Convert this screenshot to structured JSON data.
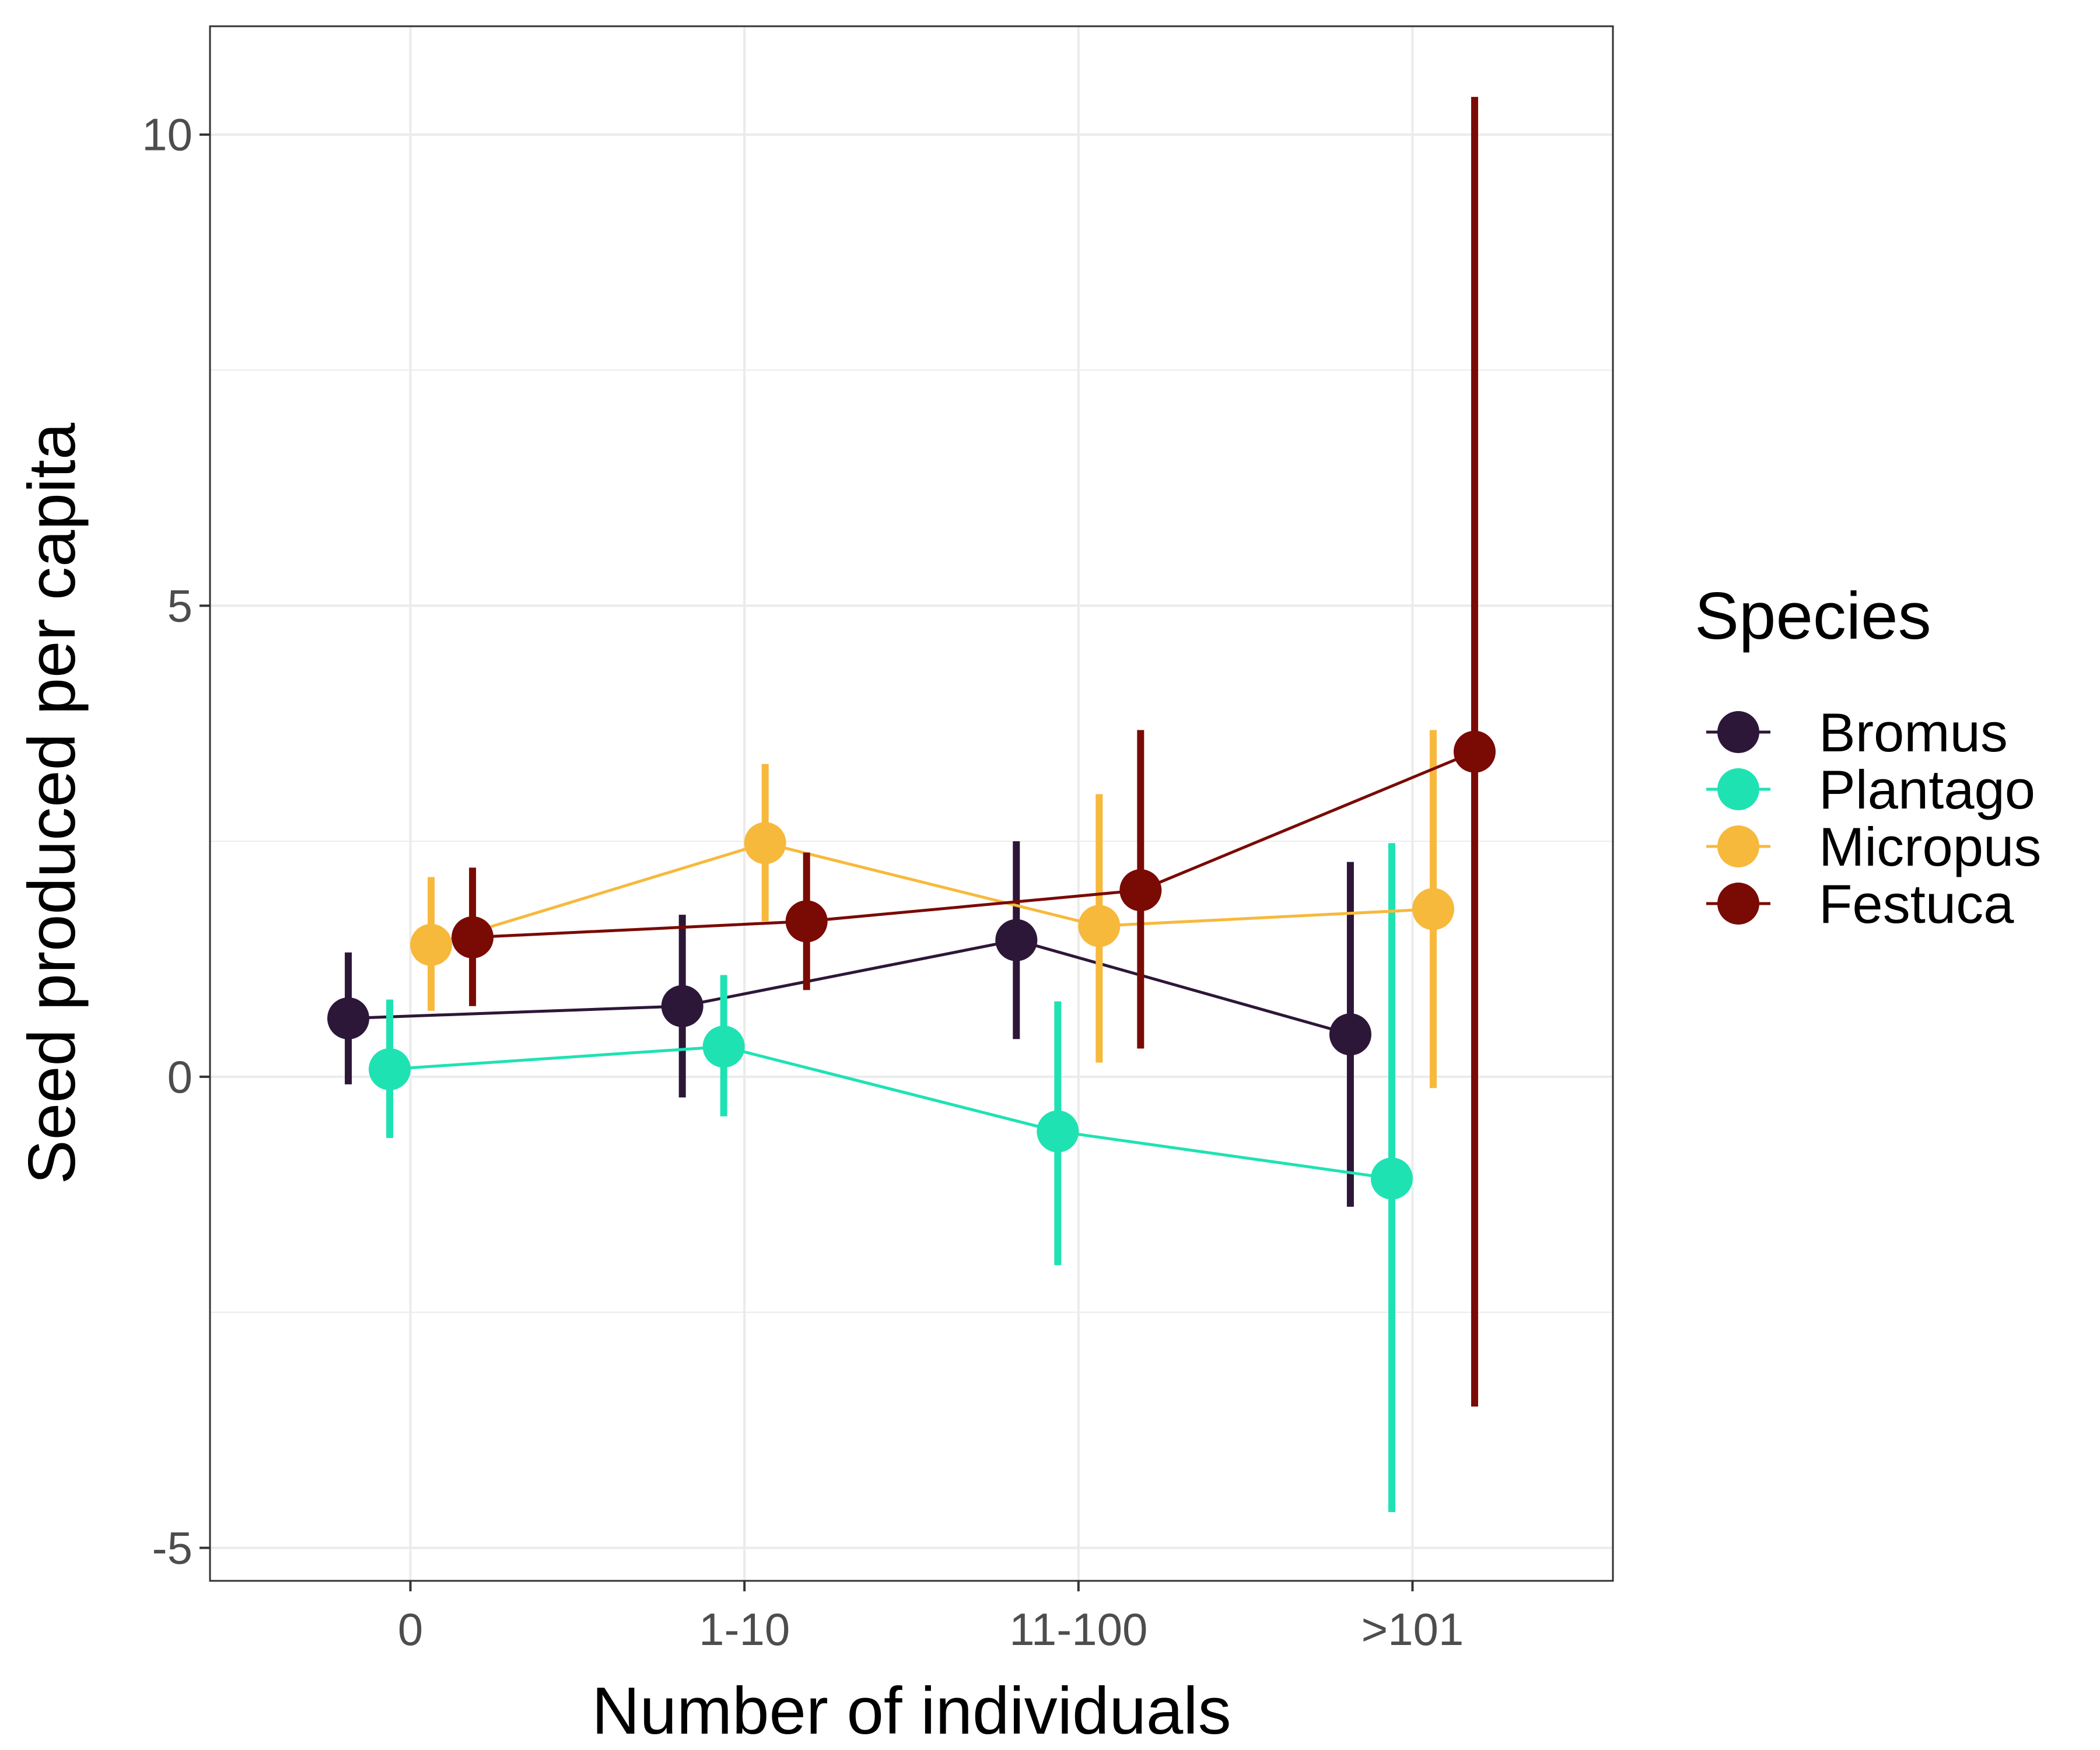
{
  "chart_data": {
    "type": "line",
    "xlabel": "Number of individuals",
    "ylabel": "Seed produced per capita",
    "categories": [
      "0",
      "1-10",
      "11-100",
      ">101"
    ],
    "ylim": [
      -5.35,
      11.15
    ],
    "yticks": [
      -5,
      0,
      5,
      10
    ],
    "ytick_labels": [
      "-5",
      "0",
      "5",
      "10"
    ],
    "grid": true,
    "legend": {
      "title": "Species",
      "position": "right"
    },
    "series": [
      {
        "name": "Bromus",
        "color": "#2d1738",
        "values": [
          0.62,
          0.75,
          1.45,
          0.45
        ],
        "lower": [
          -0.08,
          -0.22,
          0.4,
          -1.38
        ],
        "upper": [
          1.32,
          1.72,
          2.5,
          2.28
        ]
      },
      {
        "name": "Plantago",
        "color": "#1fe2b3",
        "values": [
          0.08,
          0.32,
          -0.58,
          -1.08
        ],
        "lower": [
          -0.65,
          -0.42,
          -2.0,
          -4.62
        ],
        "upper": [
          0.82,
          1.08,
          0.8,
          2.48
        ]
      },
      {
        "name": "Micropus",
        "color": "#f7b93c",
        "values": [
          1.4,
          2.48,
          1.6,
          1.78
        ],
        "lower": [
          0.7,
          1.65,
          0.15,
          -0.12
        ],
        "upper": [
          2.12,
          3.32,
          3.0,
          3.68
        ]
      },
      {
        "name": "Festuca",
        "color": "#7a0a04",
        "values": [
          1.48,
          1.65,
          1.98,
          3.45
        ],
        "lower": [
          0.75,
          0.92,
          0.3,
          -3.5
        ],
        "upper": [
          2.22,
          2.38,
          3.68,
          10.4
        ]
      }
    ]
  }
}
